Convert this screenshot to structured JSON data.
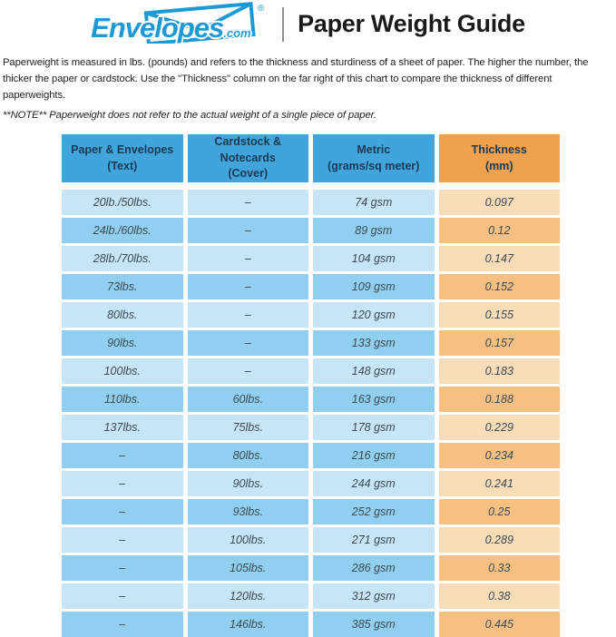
{
  "brand": {
    "logo_text": "Envelopes",
    "logo_suffix": ".com",
    "registered_mark": "®"
  },
  "header": {
    "title": "Paper Weight Guide"
  },
  "intro": {
    "paragraph": "Paperweight is measured in lbs. (pounds) and refers to the thickness and sturdiness of a sheet of paper. The higher the number, the thicker the paper or cardstock. Use the \"Thickness\" column on the far right of this chart to compare the thickness of different paperweights.",
    "note": "**NOTE** Paperweight does not refer to the actual weight of a single piece of paper."
  },
  "table": {
    "columns": [
      {
        "label": "Paper & Envelopes",
        "sublabel": "(Text)"
      },
      {
        "label": "Cardstock & Notecards",
        "sublabel": "(Cover)"
      },
      {
        "label": "Metric",
        "sublabel": "(grams/sq meter)"
      },
      {
        "label": "Thickness",
        "sublabel": "(mm)"
      }
    ],
    "rows": [
      [
        "20lb./50lbs.",
        "–",
        "74 gsm",
        "0.097"
      ],
      [
        "24lb./60lbs.",
        "–",
        "89 gsm",
        "0.12"
      ],
      [
        "28lb./70lbs.",
        "–",
        "104 gsm",
        "0.147"
      ],
      [
        "73lbs.",
        "–",
        "109 gsm",
        "0.152"
      ],
      [
        "80lbs.",
        "–",
        "120 gsm",
        "0.155"
      ],
      [
        "90lbs.",
        "–",
        "133 gsm",
        "0.157"
      ],
      [
        "100lbs.",
        "–",
        "148 gsm",
        "0.183"
      ],
      [
        "110lbs.",
        "60lbs.",
        "163 gsm",
        "0.188"
      ],
      [
        "137lbs.",
        "75lbs.",
        "178 gsm",
        "0.229"
      ],
      [
        "–",
        "80lbs.",
        "216 gsm",
        "0.234"
      ],
      [
        "–",
        "90lbs.",
        "244 gsm",
        "0.241"
      ],
      [
        "–",
        "93lbs.",
        "252 gsm",
        "0.25"
      ],
      [
        "–",
        "100lbs.",
        "271 gsm",
        "0.289"
      ],
      [
        "–",
        "105lbs.",
        "286 gsm",
        "0.33"
      ],
      [
        "–",
        "120lbs.",
        "312 gsm",
        "0.38"
      ],
      [
        "–",
        "146lbs.",
        "385 gsm",
        "0.445"
      ]
    ]
  },
  "theme": {
    "colors": {
      "brand_blue": "#1d9ad6",
      "header_blue": "#41a4da",
      "header_orange": "#f0a14d",
      "row_blue_light": "#c6e6f8",
      "row_blue_dark": "#90cfef",
      "row_orange_light": "#f9dcb8",
      "row_orange_dark": "#f6c083",
      "header_text": "#1b3a55",
      "cell_text": "#3d4a52",
      "title_text": "#1a1a1a",
      "body_text": "#1f1f1f",
      "divider_gray": "#8c8c8c"
    }
  }
}
